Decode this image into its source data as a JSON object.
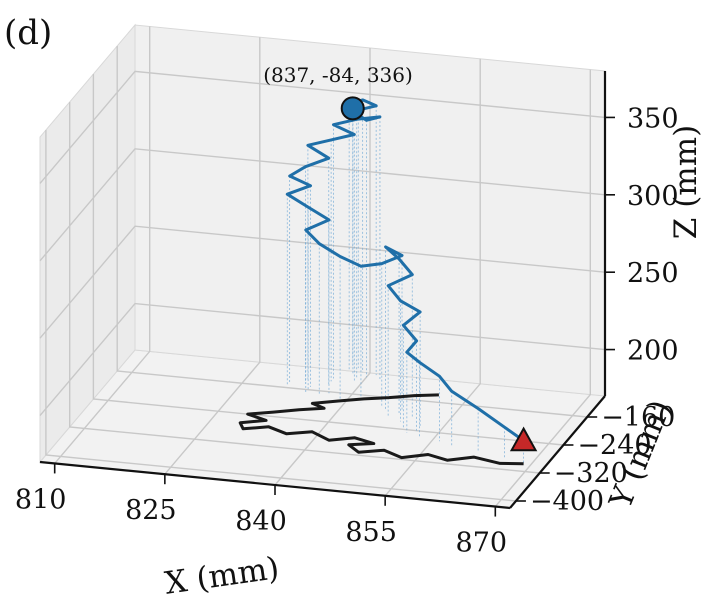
{
  "panel_label": "(d)",
  "chart_data": {
    "type": "line3d",
    "annotation": "(837, -84, 336)",
    "axes": {
      "x": {
        "label": "X (mm)",
        "range": [
          808,
          872
        ],
        "ticks": [
          810,
          825,
          840,
          855,
          870
        ],
        "tick_labels": [
          "810",
          "825",
          "840",
          "855",
          "870"
        ]
      },
      "y": {
        "label": "Y (mm)",
        "range": [
          -420,
          -100
        ],
        "ticks": [
          -160,
          -240,
          -320,
          -400
        ],
        "tick_labels": [
          "−160",
          "−240",
          "−320",
          "−400"
        ]
      },
      "z": {
        "label": "Z (mm)",
        "range": [
          170,
          380
        ],
        "ticks": [
          200,
          250,
          300,
          350
        ],
        "tick_labels": [
          "200",
          "250",
          "300",
          "350"
        ]
      }
    },
    "grid": true,
    "series": [
      {
        "role": "trajectory-3d",
        "color": "#1f6fa8",
        "points": [
          [
            869,
            -300,
            185
          ],
          [
            866,
            -290,
            190
          ],
          [
            862,
            -280,
            198
          ],
          [
            858,
            -270,
            205
          ],
          [
            856,
            -262,
            212
          ],
          [
            853,
            -255,
            218
          ],
          [
            851,
            -248,
            222
          ],
          [
            852,
            -240,
            228
          ],
          [
            850,
            -235,
            236
          ],
          [
            852,
            -228,
            244
          ],
          [
            849,
            -220,
            248
          ],
          [
            847,
            -212,
            255
          ],
          [
            850,
            -205,
            262
          ],
          [
            848,
            -200,
            270
          ],
          [
            846,
            -196,
            276
          ],
          [
            848,
            -190,
            270
          ],
          [
            845,
            -184,
            262
          ],
          [
            842,
            -180,
            258
          ],
          [
            839,
            -176,
            262
          ],
          [
            836,
            -172,
            268
          ],
          [
            834,
            -168,
            275
          ],
          [
            837,
            -164,
            282
          ],
          [
            834,
            -160,
            288
          ],
          [
            831,
            -156,
            294
          ],
          [
            834,
            -152,
            300
          ],
          [
            831,
            -148,
            304
          ],
          [
            833,
            -144,
            310
          ],
          [
            836,
            -140,
            316
          ],
          [
            833,
            -136,
            322
          ],
          [
            836,
            -132,
            326
          ],
          [
            839,
            -128,
            330
          ],
          [
            836,
            -124,
            334
          ],
          [
            839,
            -120,
            338
          ],
          [
            842,
            -116,
            340
          ],
          [
            840,
            -112,
            336
          ],
          [
            838,
            -108,
            340
          ],
          [
            841,
            -104,
            344
          ],
          [
            839,
            -100,
            346
          ],
          [
            837,
            -96,
            342
          ],
          [
            838,
            -90,
            339
          ],
          [
            837,
            -84,
            336
          ]
        ]
      },
      {
        "role": "xy-projection",
        "color": "#1a1a1a",
        "points": [
          [
            869,
            -300
          ],
          [
            866,
            -305
          ],
          [
            862,
            -295
          ],
          [
            859,
            -310
          ],
          [
            856,
            -300
          ],
          [
            853,
            -315
          ],
          [
            850,
            -300
          ],
          [
            847,
            -312
          ],
          [
            845,
            -295
          ],
          [
            848,
            -285
          ],
          [
            845,
            -275
          ],
          [
            842,
            -288
          ],
          [
            839,
            -270
          ],
          [
            836,
            -282
          ],
          [
            833,
            -268
          ],
          [
            830,
            -280
          ],
          [
            829,
            -265
          ],
          [
            832,
            -252
          ],
          [
            829,
            -240
          ],
          [
            832,
            -228
          ],
          [
            835,
            -215
          ],
          [
            838,
            -205
          ],
          [
            836,
            -195
          ],
          [
            839,
            -182
          ],
          [
            842,
            -170
          ],
          [
            845,
            -160
          ],
          [
            848,
            -148
          ],
          [
            851,
            -140
          ]
        ]
      }
    ],
    "markers": [
      {
        "role": "start",
        "shape": "triangle",
        "color": "#c62828",
        "point": [
          869,
          -300,
          185
        ]
      },
      {
        "role": "end",
        "shape": "circle",
        "color": "#1f6fa8",
        "point": [
          837,
          -84,
          336
        ]
      }
    ]
  }
}
